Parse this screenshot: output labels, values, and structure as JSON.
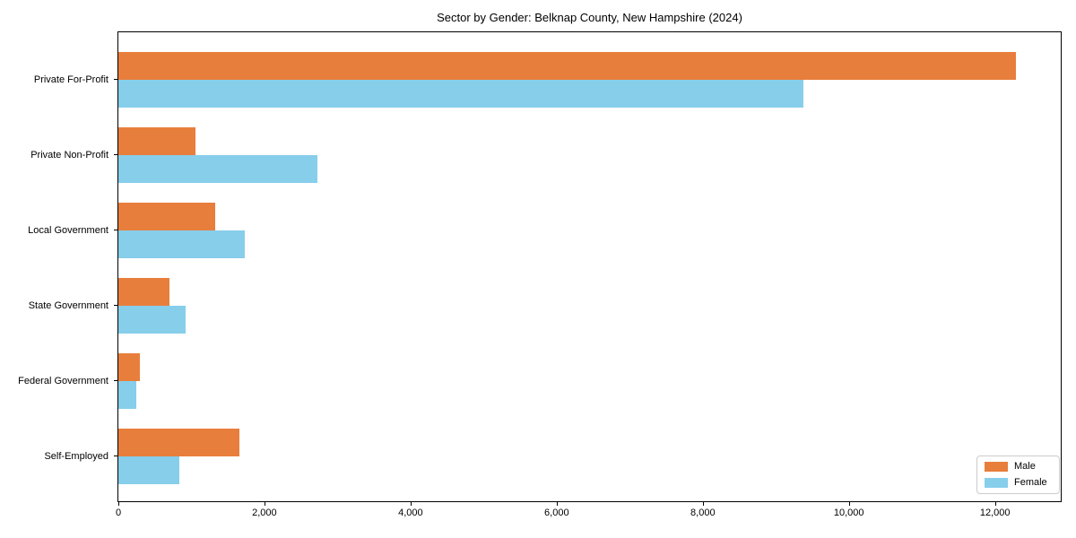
{
  "title": "Sector by Gender: Belknap County, New Hampshire (2024)",
  "chart_data": {
    "type": "bar",
    "orientation": "horizontal",
    "title": "Sector by Gender: Belknap County, New Hampshire (2024)",
    "categories": [
      "Private For-Profit",
      "Private Non-Profit",
      "Local Government",
      "State Government",
      "Federal Government",
      "Self-Employed"
    ],
    "series": [
      {
        "name": "Male",
        "color": "#e87e3c",
        "values": [
          12290,
          1050,
          1330,
          700,
          300,
          1660
        ]
      },
      {
        "name": "Female",
        "color": "#87ceeb",
        "values": [
          9380,
          2720,
          1730,
          920,
          240,
          830
        ]
      }
    ],
    "xlabel": "",
    "ylabel": "",
    "xlim": [
      0,
      12900
    ],
    "xticks": [
      0,
      2000,
      4000,
      6000,
      8000,
      10000,
      12000
    ],
    "xtick_labels": [
      "0",
      "2,000",
      "4,000",
      "6,000",
      "8,000",
      "10,000",
      "12,000"
    ],
    "grid": false,
    "legend_position": "lower right",
    "legend_entries": [
      "Male",
      "Female"
    ]
  }
}
